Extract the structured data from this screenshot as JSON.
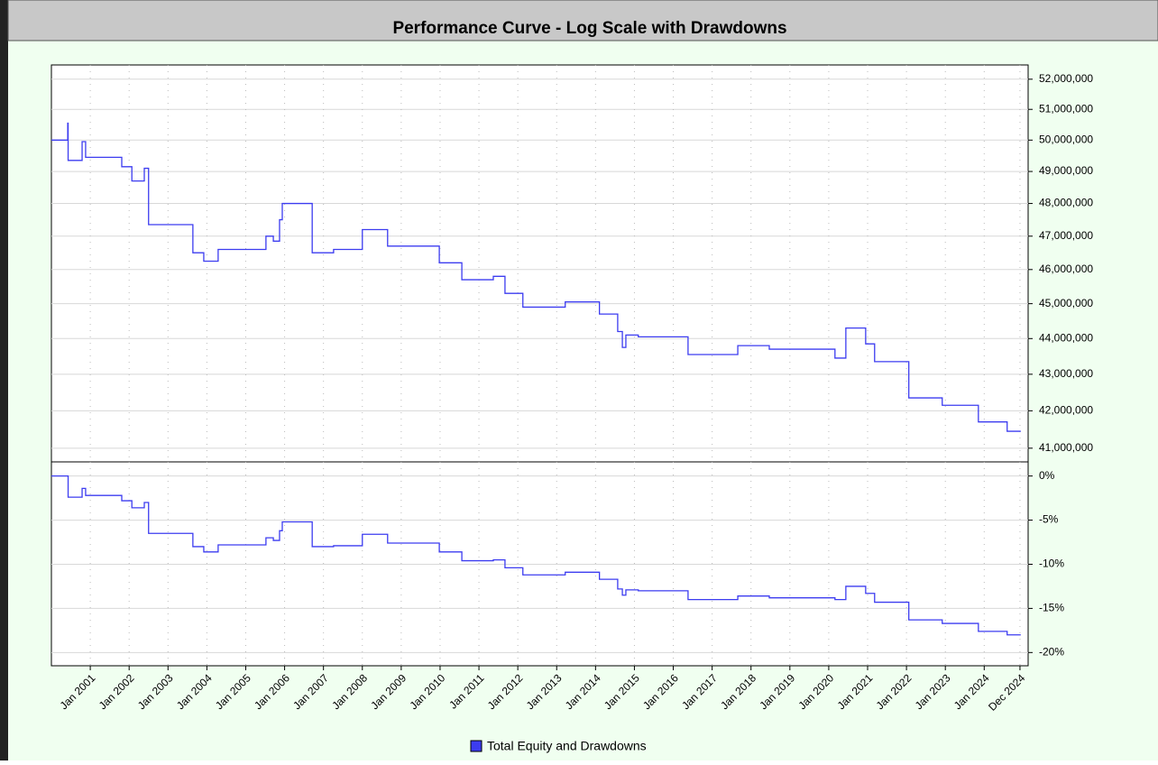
{
  "chart_data": [
    {
      "type": "line",
      "title": "Performance Curve - Log Scale with Drawdowns",
      "log_scale": true,
      "grid": true,
      "x": [
        2000.0,
        2000.42,
        2000.43,
        2000.79,
        2000.88,
        2001.81,
        2002.07,
        2002.39,
        2002.5,
        2003.64,
        2003.92,
        2004.29,
        2005.52,
        2005.71,
        2005.87,
        2005.94,
        2006.71,
        2007.26,
        2008.0,
        2008.65,
        2009.98,
        2010.56,
        2011.37,
        2011.67,
        2012.13,
        2013.22,
        2014.1,
        2014.57,
        2014.69,
        2014.78,
        2015.1,
        2016.38,
        2017.66,
        2018.47,
        2020.16,
        2020.44,
        2020.95,
        2021.18,
        2022.06,
        2022.92,
        2023.85,
        2024.59,
        2024.94
      ],
      "series": [
        {
          "name": "Total Equity and Drawdowns",
          "color": "#3c3cf0",
          "values": [
            50000000,
            50550000,
            49350000,
            49950000,
            49450000,
            49150000,
            48700000,
            49100000,
            47350000,
            46500000,
            46250000,
            46600000,
            47000000,
            46850000,
            47500000,
            48000000,
            46500000,
            46600000,
            47200000,
            46700000,
            46200000,
            45700000,
            45800000,
            45300000,
            44900000,
            45050000,
            44700000,
            44200000,
            43750000,
            44100000,
            44050000,
            43550000,
            43800000,
            43700000,
            43450000,
            44300000,
            43850000,
            43350000,
            42350000,
            42150000,
            41700000,
            41450000,
            41450000
          ]
        }
      ],
      "xlim": [
        2000.0,
        2025.13
      ],
      "ylim": [
        40640000,
        52480000
      ],
      "yticks": [
        {
          "value": 41000000,
          "label": "41,000,000"
        },
        {
          "value": 42000000,
          "label": "42,000,000"
        },
        {
          "value": 43000000,
          "label": "43,000,000"
        },
        {
          "value": 44000000,
          "label": "44,000,000"
        },
        {
          "value": 45000000,
          "label": "45,000,000"
        },
        {
          "value": 46000000,
          "label": "46,000,000"
        },
        {
          "value": 47000000,
          "label": "47,000,000"
        },
        {
          "value": 48000000,
          "label": "48,000,000"
        },
        {
          "value": 49000000,
          "label": "49,000,000"
        },
        {
          "value": 50000000,
          "label": "50,000,000"
        },
        {
          "value": 51000000,
          "label": "51,000,000"
        },
        {
          "value": 52000000,
          "label": "52,000,000"
        }
      ]
    },
    {
      "type": "line",
      "grid": true,
      "x": [
        2000.0,
        2000.42,
        2000.43,
        2000.79,
        2000.88,
        2001.81,
        2002.07,
        2002.39,
        2002.5,
        2003.64,
        2003.92,
        2004.29,
        2005.52,
        2005.71,
        2005.87,
        2005.94,
        2006.71,
        2007.26,
        2008.0,
        2008.65,
        2009.98,
        2010.56,
        2011.37,
        2011.67,
        2012.13,
        2013.22,
        2014.1,
        2014.57,
        2014.69,
        2014.78,
        2015.1,
        2016.38,
        2017.66,
        2018.47,
        2020.16,
        2020.44,
        2020.95,
        2021.18,
        2022.06,
        2022.92,
        2023.85,
        2024.59,
        2024.94
      ],
      "series": [
        {
          "color": "#3c3cf0",
          "values": [
            0,
            0,
            -2.4,
            -1.4,
            -2.2,
            -2.8,
            -3.6,
            -3.0,
            -6.5,
            -8.0,
            -8.6,
            -7.8,
            -7.0,
            -7.3,
            -6.2,
            -5.2,
            -8.0,
            -7.9,
            -6.6,
            -7.6,
            -8.6,
            -9.6,
            -9.5,
            -10.4,
            -11.2,
            -10.9,
            -11.7,
            -12.8,
            -13.5,
            -12.9,
            -13.0,
            -14.0,
            -13.6,
            -13.8,
            -14.0,
            -12.5,
            -13.3,
            -14.3,
            -16.3,
            -16.7,
            -17.6,
            -18.0,
            -18.0
          ]
        }
      ],
      "xlim": [
        2000.0,
        2025.13
      ],
      "ylim": [
        -21.5,
        1.6
      ],
      "yticks": [
        {
          "value": 0,
          "label": "0%"
        },
        {
          "value": -5,
          "label": "-5%"
        },
        {
          "value": -10,
          "label": "-10%"
        },
        {
          "value": -15,
          "label": "-15%"
        },
        {
          "value": -20,
          "label": "-20%"
        }
      ],
      "xticks": [
        {
          "value": 2001,
          "label": "Jan 2001"
        },
        {
          "value": 2002,
          "label": "Jan 2002"
        },
        {
          "value": 2003,
          "label": "Jan 2003"
        },
        {
          "value": 2004,
          "label": "Jan 2004"
        },
        {
          "value": 2005,
          "label": "Jan 2005"
        },
        {
          "value": 2006,
          "label": "Jan 2006"
        },
        {
          "value": 2007,
          "label": "Jan 2007"
        },
        {
          "value": 2008,
          "label": "Jan 2008"
        },
        {
          "value": 2009,
          "label": "Jan 2009"
        },
        {
          "value": 2010,
          "label": "Jan 2010"
        },
        {
          "value": 2011,
          "label": "Jan 2011"
        },
        {
          "value": 2012,
          "label": "Jan 2012"
        },
        {
          "value": 2013,
          "label": "Jan 2013"
        },
        {
          "value": 2014,
          "label": "Jan 2014"
        },
        {
          "value": 2015,
          "label": "Jan 2015"
        },
        {
          "value": 2016,
          "label": "Jan 2016"
        },
        {
          "value": 2017,
          "label": "Jan 2017"
        },
        {
          "value": 2018,
          "label": "Jan 2018"
        },
        {
          "value": 2019,
          "label": "Jan 2019"
        },
        {
          "value": 2020,
          "label": "Jan 2020"
        },
        {
          "value": 2021,
          "label": "Jan 2021"
        },
        {
          "value": 2022,
          "label": "Jan 2022"
        },
        {
          "value": 2023,
          "label": "Jan 2023"
        },
        {
          "value": 2024,
          "label": "Jan 2024"
        },
        {
          "value": 2024.92,
          "label": "Dec 2024"
        }
      ]
    }
  ]
}
